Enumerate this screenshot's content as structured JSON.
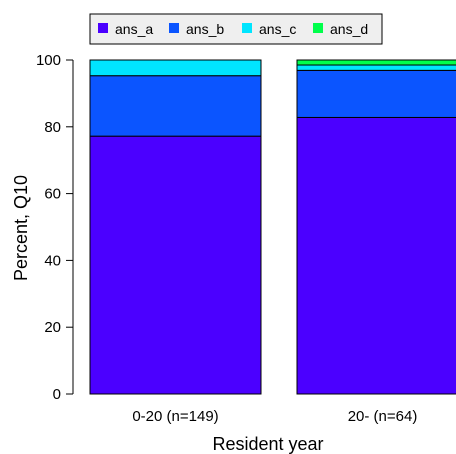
{
  "chart_data": {
    "type": "bar",
    "stacked": true,
    "categories": [
      "0-20 (n=149)",
      "20- (n=64)"
    ],
    "series": [
      {
        "name": "ans_a",
        "color": "#4B00FF",
        "values": [
          77.2,
          82.8
        ]
      },
      {
        "name": "ans_b",
        "color": "#0B55FF",
        "values": [
          18.1,
          14.1
        ]
      },
      {
        "name": "ans_c",
        "color": "#00E5FF",
        "values": [
          4.7,
          1.6
        ]
      },
      {
        "name": "ans_d",
        "color": "#00FF4B",
        "values": [
          0,
          1.5
        ]
      }
    ],
    "xlabel": "Resident year",
    "ylabel": "Percent, Q10",
    "ylim": [
      0,
      100
    ],
    "yticks": [
      0,
      20,
      40,
      60,
      80,
      100
    ],
    "legend": {
      "position": "top",
      "items": [
        "ans_a",
        "ans_b",
        "ans_c",
        "ans_d"
      ]
    }
  }
}
